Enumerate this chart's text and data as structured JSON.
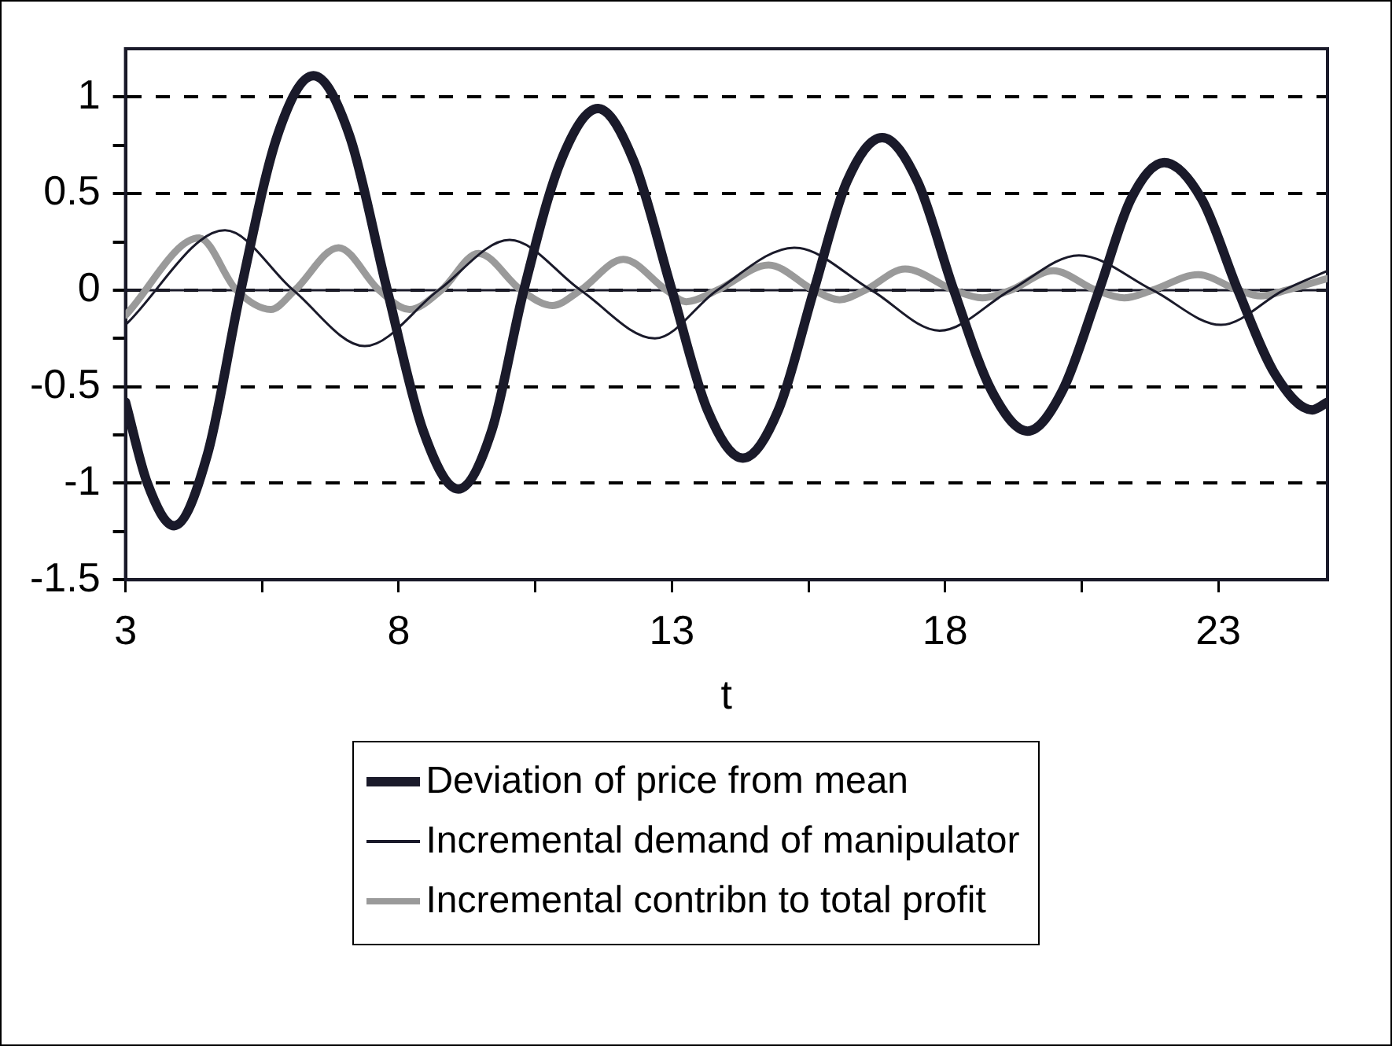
{
  "chart_data": {
    "type": "line",
    "xlabel": "t",
    "xlim": [
      3,
      25
    ],
    "xticks": [
      3,
      {
        "value": 5.5,
        "label": null
      },
      8,
      {
        "value": 10.5,
        "label": null
      },
      13,
      {
        "value": 15.5,
        "label": null
      },
      18,
      {
        "value": 20.5,
        "label": null
      },
      23
    ],
    "ylim": [
      -1.5,
      1.25
    ],
    "yticks": [
      -1.5,
      {
        "value": -1.25,
        "label": null
      },
      -1,
      {
        "value": -0.75,
        "label": null
      },
      -0.5,
      {
        "value": -0.25,
        "label": null
      },
      0,
      {
        "value": 0.25,
        "label": null
      },
      0.5,
      {
        "value": 0.75,
        "label": null
      },
      1
    ],
    "grid": "y",
    "legend": "bottom",
    "marker": "none",
    "line_style": "solid",
    "series": [
      {
        "name": "Deviation of price from mean",
        "color": "#1a1a2a",
        "x": [
          3,
          3.4,
          3.89,
          4.5,
          5.11,
          5.78,
          6.44,
          7.1,
          7.79,
          8.45,
          9.09,
          9.7,
          10.29,
          10.97,
          11.65,
          12.3,
          13,
          13.65,
          14.3,
          14.95,
          15.6,
          16.2,
          16.85,
          17.5,
          18.16,
          18.85,
          19.51,
          20.15,
          20.82,
          21.4,
          22.01,
          22.7,
          23.36,
          24.05,
          24.72,
          25
        ],
        "values": [
          -0.58,
          -1,
          -1.22,
          -0.85,
          0,
          0.8,
          1.11,
          0.8,
          0,
          -0.73,
          -1.03,
          -0.73,
          0,
          0.67,
          0.94,
          0.67,
          0,
          -0.62,
          -0.87,
          -0.62,
          0,
          0.56,
          0.79,
          0.56,
          0,
          -0.52,
          -0.73,
          -0.52,
          0,
          0.47,
          0.66,
          0.47,
          0,
          -0.44,
          -0.62,
          -0.58
        ]
      },
      {
        "name": "Incremental demand of manipulator",
        "color": "#1a1a2a",
        "x": [
          3,
          4.82,
          6.07,
          7.38,
          8.73,
          10.03,
          11.33,
          12.69,
          13.83,
          15.24,
          16.65,
          17.9,
          19.2,
          20.45,
          21.8,
          23.05,
          24.2,
          25
        ],
        "values": [
          -0.18,
          0.31,
          0,
          -0.29,
          0,
          0.26,
          0,
          -0.25,
          0,
          0.22,
          0,
          -0.21,
          0,
          0.18,
          0,
          -0.18,
          0,
          0.1
        ]
      },
      {
        "name": "Incremental contribn to total profit",
        "color": "#9a9a9a",
        "x": [
          3,
          4.35,
          5.03,
          5.66,
          6.1,
          6.9,
          7.64,
          8.2,
          8.78,
          9.46,
          10.24,
          10.81,
          11.33,
          12.11,
          12.9,
          13.26,
          13.83,
          14.77,
          15.6,
          16.07,
          16.54,
          17.27,
          18.16,
          18.68,
          19.2,
          19.98,
          20.76,
          21.28,
          21.8,
          22.63,
          23.36,
          23.78,
          24.25,
          25
        ],
        "values": [
          -0.13,
          0.27,
          0,
          -0.1,
          0,
          0.22,
          0,
          -0.1,
          0,
          0.19,
          0,
          -0.08,
          0,
          0.16,
          0,
          -0.06,
          0,
          0.13,
          0,
          -0.05,
          0,
          0.11,
          0,
          -0.04,
          0,
          0.1,
          0,
          -0.04,
          0,
          0.08,
          0,
          -0.03,
          0,
          0.06
        ]
      }
    ]
  }
}
